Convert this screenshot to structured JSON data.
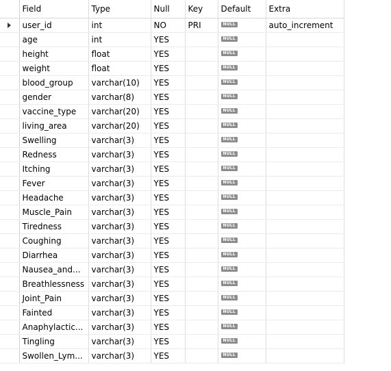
{
  "columns": [
    "Field",
    "Type",
    "Null",
    "Key",
    "Default",
    "Extra"
  ],
  "null_badge": "NULL",
  "rows": [
    {
      "field": "user_id",
      "type": "int",
      "null": "NO",
      "key": "PRI",
      "default": "NULL",
      "extra": "auto_increment",
      "current": true
    },
    {
      "field": "age",
      "type": "int",
      "null": "YES",
      "key": "",
      "default": "NULL",
      "extra": ""
    },
    {
      "field": "height",
      "type": "float",
      "null": "YES",
      "key": "",
      "default": "NULL",
      "extra": ""
    },
    {
      "field": "weight",
      "type": "float",
      "null": "YES",
      "key": "",
      "default": "NULL",
      "extra": ""
    },
    {
      "field": "blood_group",
      "type": "varchar(10)",
      "null": "YES",
      "key": "",
      "default": "NULL",
      "extra": ""
    },
    {
      "field": "gender",
      "type": "varchar(8)",
      "null": "YES",
      "key": "",
      "default": "NULL",
      "extra": ""
    },
    {
      "field": "vaccine_type",
      "type": "varchar(20)",
      "null": "YES",
      "key": "",
      "default": "NULL",
      "extra": ""
    },
    {
      "field": "living_area",
      "type": "varchar(20)",
      "null": "YES",
      "key": "",
      "default": "NULL",
      "extra": ""
    },
    {
      "field": "Swelling",
      "type": "varchar(3)",
      "null": "YES",
      "key": "",
      "default": "NULL",
      "extra": ""
    },
    {
      "field": "Redness",
      "type": "varchar(3)",
      "null": "YES",
      "key": "",
      "default": "NULL",
      "extra": ""
    },
    {
      "field": "Itching",
      "type": "varchar(3)",
      "null": "YES",
      "key": "",
      "default": "NULL",
      "extra": ""
    },
    {
      "field": "Fever",
      "type": "varchar(3)",
      "null": "YES",
      "key": "",
      "default": "NULL",
      "extra": ""
    },
    {
      "field": "Headache",
      "type": "varchar(3)",
      "null": "YES",
      "key": "",
      "default": "NULL",
      "extra": ""
    },
    {
      "field": "Muscle_Pain",
      "type": "varchar(3)",
      "null": "YES",
      "key": "",
      "default": "NULL",
      "extra": ""
    },
    {
      "field": "Tiredness",
      "type": "varchar(3)",
      "null": "YES",
      "key": "",
      "default": "NULL",
      "extra": ""
    },
    {
      "field": "Coughing",
      "type": "varchar(3)",
      "null": "YES",
      "key": "",
      "default": "NULL",
      "extra": ""
    },
    {
      "field": "Diarrhea",
      "type": "varchar(3)",
      "null": "YES",
      "key": "",
      "default": "NULL",
      "extra": ""
    },
    {
      "field": "Nausea_and...",
      "type": "varchar(3)",
      "null": "YES",
      "key": "",
      "default": "NULL",
      "extra": ""
    },
    {
      "field": "Breathlessness",
      "type": "varchar(3)",
      "null": "YES",
      "key": "",
      "default": "NULL",
      "extra": ""
    },
    {
      "field": "Joint_Pain",
      "type": "varchar(3)",
      "null": "YES",
      "key": "",
      "default": "NULL",
      "extra": ""
    },
    {
      "field": "Fainted",
      "type": "varchar(3)",
      "null": "YES",
      "key": "",
      "default": "NULL",
      "extra": ""
    },
    {
      "field": "Anaphylactic...",
      "type": "varchar(3)",
      "null": "YES",
      "key": "",
      "default": "NULL",
      "extra": ""
    },
    {
      "field": "Tingling",
      "type": "varchar(3)",
      "null": "YES",
      "key": "",
      "default": "NULL",
      "extra": ""
    },
    {
      "field": "Swollen_Lym...",
      "type": "varchar(3)",
      "null": "YES",
      "key": "",
      "default": "NULL",
      "extra": ""
    }
  ]
}
